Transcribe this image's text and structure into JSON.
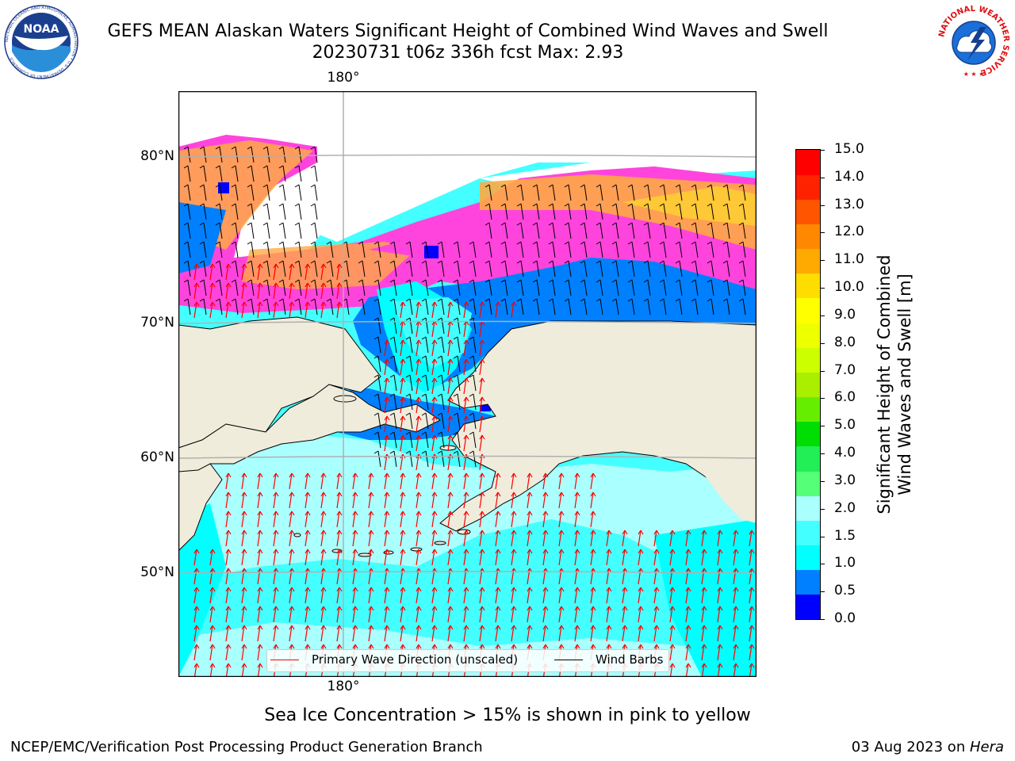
{
  "title": {
    "line1": "GEFS MEAN Alaskan Waters Significant Height of Combined Wind Waves and Swell",
    "line2": "20230731 t06z 336h fcst   Max: 2.93"
  },
  "logos": {
    "noaa_text": "NOAA",
    "noaa_ring": "NATIONAL OCEANIC AND ATMOSPHERIC ADMINISTRATION • U.S. DEPARTMENT OF COMMERCE",
    "nws_ring": "NATIONAL WEATHER SERVICE"
  },
  "map": {
    "lat_labels": [
      "80°N",
      "70°N",
      "60°N",
      "50°N"
    ],
    "lon_label_top": "180°",
    "lon_label_bottom": "180°",
    "colors": {
      "land": "#efecdc",
      "ocean_low": "#aaffff",
      "ocean_mid": "#44ffff",
      "ocean_high": "#00ffff",
      "shallow_1": "#0080ff",
      "shallow_0": "#0000ff",
      "ice_pink": "#ff44dd",
      "ice_orange": "#ffaa44",
      "ice_yellow": "#ffcc33",
      "wave_arrow": "#ff0000",
      "wind_barb": "#000000",
      "grid": "#b0b0b0"
    },
    "legend": {
      "wave_label": "Primary Wave Direction (unscaled)",
      "barb_label": "Wind Barbs"
    }
  },
  "colorbar": {
    "title_line1": "Significant Height of Combined",
    "title_line2": "Wind Waves and Swell [m]",
    "ticks": [
      "15.0",
      "14.0",
      "13.0",
      "12.0",
      "11.0",
      "10.0",
      "9.0",
      "8.0",
      "7.0",
      "6.0",
      "5.0",
      "4.0",
      "3.0",
      "2.0",
      "1.5",
      "1.0",
      "0.5",
      "0.0"
    ],
    "colors_bottom_to_top": [
      "#0000ff",
      "#0080ff",
      "#00ffff",
      "#44ffff",
      "#aaffff",
      "#55ff77",
      "#22ee55",
      "#00dd00",
      "#66ee00",
      "#aaee00",
      "#ccff00",
      "#eeff00",
      "#ffff00",
      "#ffdd00",
      "#ffaa00",
      "#ff8800",
      "#ff5500",
      "#ff2200",
      "#ff0000"
    ]
  },
  "subtitle": "Sea Ice Concentration > 15% is shown in pink to yellow",
  "footer": {
    "left": "NCEP/EMC/Verification Post Processing Product Generation Branch",
    "right_date": "03 Aug 2023 on ",
    "right_host": "Hera"
  }
}
